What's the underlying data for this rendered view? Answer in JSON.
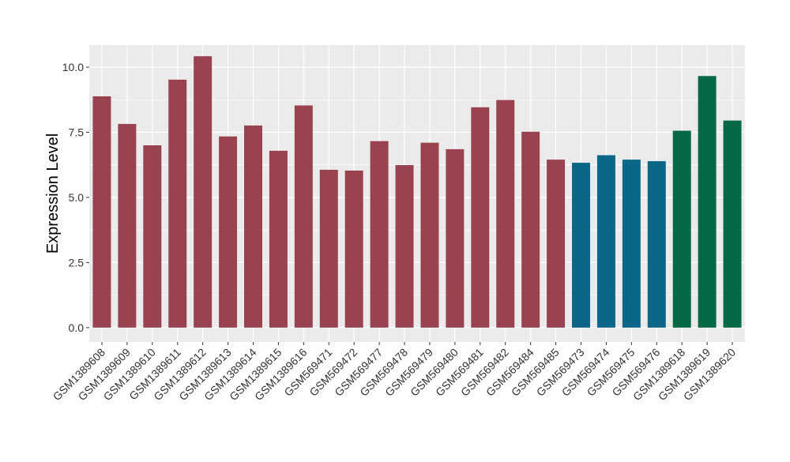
{
  "chart_data": {
    "type": "bar",
    "title": "",
    "xlabel": "",
    "ylabel": "Expression Level",
    "ylim": [
      -0.55,
      10.85
    ],
    "yticks": [
      0.0,
      2.5,
      5.0,
      7.5,
      10.0
    ],
    "ytick_labels": [
      "0.0",
      "2.5",
      "5.0",
      "7.5",
      "10.0"
    ],
    "grid": true,
    "legend": "none",
    "panel_background": "#ebebeb",
    "grid_color": "#ffffff",
    "categories": [
      "GSM1389608",
      "GSM1389609",
      "GSM1389610",
      "GSM1389611",
      "GSM1389612",
      "GSM1389613",
      "GSM1389614",
      "GSM1389615",
      "GSM1389616",
      "GSM569471",
      "GSM569472",
      "GSM569477",
      "GSM569478",
      "GSM569479",
      "GSM569480",
      "GSM569481",
      "GSM569482",
      "GSM569484",
      "GSM569485",
      "GSM569473",
      "GSM569474",
      "GSM569475",
      "GSM569476",
      "GSM1389618",
      "GSM1389619",
      "GSM1389620"
    ],
    "values": [
      8.88,
      7.82,
      7.0,
      9.52,
      10.42,
      7.34,
      7.76,
      6.79,
      8.53,
      6.06,
      6.03,
      7.16,
      6.24,
      7.1,
      6.85,
      8.46,
      8.74,
      7.52,
      6.45,
      6.33,
      6.62,
      6.45,
      6.39,
      7.56,
      9.66,
      7.95
    ],
    "bar_colors": [
      "#9a4350",
      "#9a4350",
      "#9a4350",
      "#9a4350",
      "#9a4350",
      "#9a4350",
      "#9a4350",
      "#9a4350",
      "#9a4350",
      "#9a4350",
      "#9a4350",
      "#9a4350",
      "#9a4350",
      "#9a4350",
      "#9a4350",
      "#9a4350",
      "#9a4350",
      "#9a4350",
      "#9a4350",
      "#0b6688",
      "#0b6688",
      "#0b6688",
      "#0b6688",
      "#066946",
      "#066946",
      "#066946"
    ]
  }
}
